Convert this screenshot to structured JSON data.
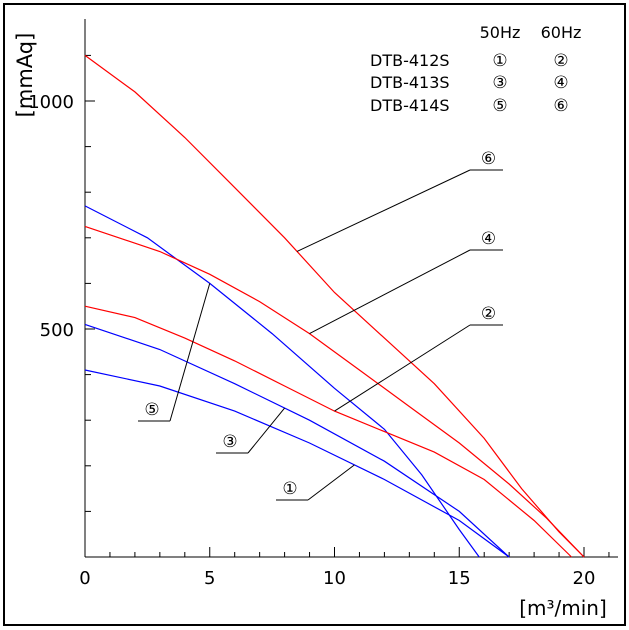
{
  "chart_data": {
    "type": "line",
    "xlabel": "[m³/min]",
    "ylabel": "[mmAq]",
    "xlim": [
      0,
      22
    ],
    "ylim": [
      0,
      1175
    ],
    "x_ticks": [
      "0",
      "5",
      "10",
      "15",
      "20"
    ],
    "y_ticks": [
      "500",
      "1000"
    ],
    "grid": false,
    "legend": {
      "position": "top-right",
      "columns": [
        "50Hz",
        "60Hz"
      ],
      "rows": [
        {
          "model": "DTB-412S",
          "hz50": "①",
          "hz60": "②"
        },
        {
          "model": "DTB-413S",
          "hz50": "③",
          "hz60": "④"
        },
        {
          "model": "DTB-414S",
          "hz50": "⑤",
          "hz60": "⑥"
        }
      ]
    },
    "colors": {
      "hz50": "#0000ff",
      "hz60": "#ff0000",
      "axis": "#000000"
    },
    "series": [
      {
        "name": "①",
        "color": "#0000ff",
        "x": [
          0,
          3,
          6,
          9,
          12,
          15,
          17
        ],
        "y": [
          410,
          375,
          320,
          250,
          170,
          80,
          0
        ]
      },
      {
        "name": "③",
        "color": "#0000ff",
        "x": [
          0,
          3,
          6,
          9,
          12,
          15,
          17
        ],
        "y": [
          510,
          455,
          380,
          300,
          210,
          100,
          0
        ]
      },
      {
        "name": "⑤",
        "color": "#0000ff",
        "x": [
          0,
          2.5,
          5,
          7.5,
          10,
          12,
          13.5,
          15,
          15.8
        ],
        "y": [
          770,
          700,
          600,
          490,
          370,
          280,
          180,
          60,
          0
        ]
      },
      {
        "name": "②",
        "color": "#ff0000",
        "x": [
          0,
          2,
          4,
          6,
          8,
          10,
          12,
          14,
          16,
          18,
          19.5
        ],
        "y": [
          550,
          525,
          480,
          430,
          375,
          320,
          275,
          230,
          170,
          80,
          0
        ]
      },
      {
        "name": "④",
        "color": "#ff0000",
        "x": [
          0,
          3,
          5,
          7,
          9,
          11,
          13,
          15,
          17,
          18.5,
          20
        ],
        "y": [
          725,
          670,
          620,
          560,
          490,
          410,
          330,
          250,
          160,
          85,
          0
        ]
      },
      {
        "name": "⑥",
        "color": "#ff0000",
        "x": [
          0,
          2,
          4,
          6,
          8,
          10,
          12,
          14,
          16,
          17.5,
          19,
          20
        ],
        "y": [
          1100,
          1020,
          920,
          810,
          700,
          580,
          480,
          380,
          260,
          150,
          55,
          0
        ]
      }
    ],
    "annotations": [
      {
        "label": "⑥",
        "series": "⑥",
        "at_x": 8.5
      },
      {
        "label": "④",
        "series": "④",
        "at_x": 9.0
      },
      {
        "label": "②",
        "series": "②",
        "at_x": 10.0
      },
      {
        "label": "⑤",
        "series": "⑤",
        "at_x": 5.0
      },
      {
        "label": "③",
        "series": "③",
        "at_x": 8.0
      },
      {
        "label": "①",
        "series": "①",
        "at_x": 10.8
      }
    ]
  }
}
